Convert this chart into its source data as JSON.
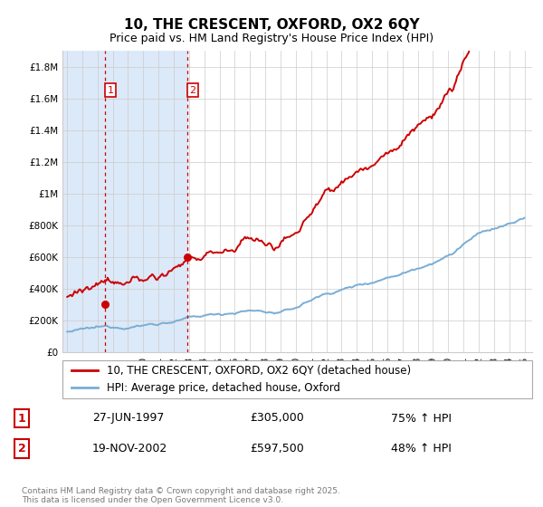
{
  "title": "10, THE CRESCENT, OXFORD, OX2 6QY",
  "subtitle": "Price paid vs. HM Land Registry's House Price Index (HPI)",
  "ylim": [
    0,
    1900000
  ],
  "yticks": [
    0,
    200000,
    400000,
    600000,
    800000,
    1000000,
    1200000,
    1400000,
    1600000,
    1800000
  ],
  "ytick_labels": [
    "£0",
    "£200K",
    "£400K",
    "£600K",
    "£800K",
    "£1M",
    "£1.2M",
    "£1.4M",
    "£1.6M",
    "£1.8M"
  ],
  "xlim_start": 1994.7,
  "xlim_end": 2025.5,
  "purchase1_date": 1997.48,
  "purchase1_price": 305000,
  "purchase2_date": 2002.88,
  "purchase2_price": 597500,
  "legend_line1": "10, THE CRESCENT, OXFORD, OX2 6QY (detached house)",
  "legend_line2": "HPI: Average price, detached house, Oxford",
  "table_row1": [
    "1",
    "27-JUN-1997",
    "£305,000",
    "75% ↑ HPI"
  ],
  "table_row2": [
    "2",
    "19-NOV-2002",
    "£597,500",
    "48% ↑ HPI"
  ],
  "footer": "Contains HM Land Registry data © Crown copyright and database right 2025.\nThis data is licensed under the Open Government Licence v3.0.",
  "bg_shaded_color": "#dce9f8",
  "line_color_property": "#cc0000",
  "line_color_hpi": "#7aadd4",
  "dashed_line_color": "#cc0000",
  "grid_color": "#cccccc",
  "title_fontsize": 11,
  "subtitle_fontsize": 9,
  "tick_fontsize": 7.5,
  "label_fontsize": 8.5
}
